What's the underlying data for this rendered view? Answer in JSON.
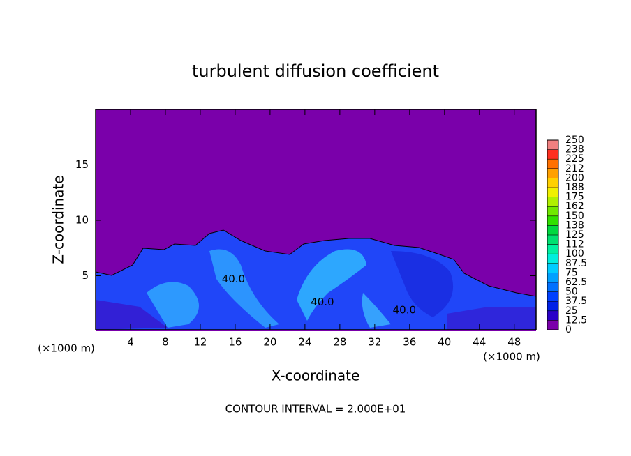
{
  "chart_data": {
    "type": "contour",
    "title": "turbulent diffusion coefficient",
    "xlabel": "X-coordinate",
    "ylabel": "Z-coordinate",
    "x_unit": "(×1000 m)",
    "footer": "CONTOUR INTERVAL = 2.000E+01",
    "xlim": [
      0,
      50.5
    ],
    "ylim": [
      0,
      20
    ],
    "xticks": [
      4,
      8,
      12,
      16,
      20,
      24,
      28,
      32,
      36,
      40,
      44,
      48
    ],
    "yticks": [
      5,
      10,
      15
    ],
    "contour_labels": [
      {
        "value": 40,
        "label": "40.0",
        "x": 15.8,
        "y": 4.7
      },
      {
        "value": 40,
        "label": "40.0",
        "x": 26.0,
        "y": 2.6
      },
      {
        "value": 40,
        "label": "40.0",
        "x": 35.4,
        "y": 1.9
      }
    ],
    "colorbar": {
      "levels": [
        0,
        12.5,
        25,
        37.5,
        50,
        62.5,
        75,
        87.5,
        100,
        112,
        125,
        138,
        150,
        162,
        175,
        188,
        200,
        212,
        225,
        238,
        250
      ],
      "colors": [
        "#7a00aa",
        "#2a00c8",
        "#0020e6",
        "#0040ff",
        "#0070ff",
        "#00a0ff",
        "#00ccff",
        "#00eedd",
        "#00f0a0",
        "#00e070",
        "#00d840",
        "#30e000",
        "#70e800",
        "#b0f000",
        "#f0f000",
        "#ffd000",
        "#ffa000",
        "#ff7000",
        "#ff3020",
        "#f08080"
      ]
    }
  }
}
